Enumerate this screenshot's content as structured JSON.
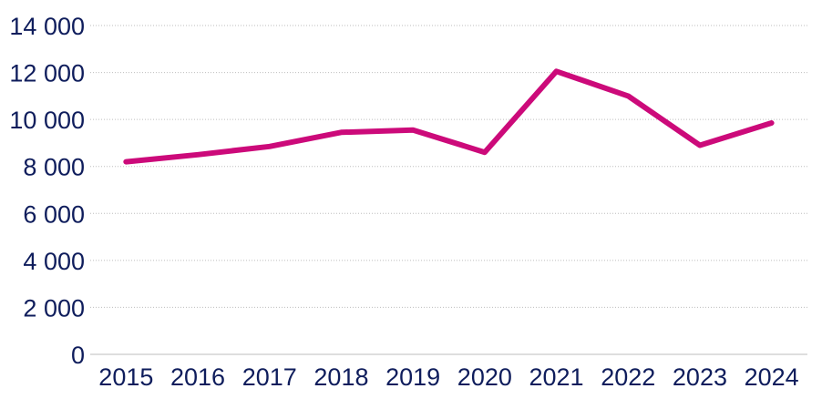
{
  "chart_data": {
    "type": "line",
    "title": "",
    "xlabel": "",
    "ylabel": "",
    "categories": [
      "2015",
      "2016",
      "2017",
      "2018",
      "2019",
      "2020",
      "2021",
      "2022",
      "2023",
      "2024"
    ],
    "series": [
      {
        "name": "",
        "color": "#cc0a7a",
        "values": [
          8200,
          8500,
          8850,
          9450,
          9550,
          8600,
          12050,
          11000,
          8900,
          9850
        ]
      }
    ],
    "ylim": [
      0,
      14000
    ],
    "yticks": [
      0,
      2000,
      4000,
      6000,
      8000,
      10000,
      12000,
      14000
    ],
    "ytick_labels": [
      "0",
      "2 000",
      "4 000",
      "6 000",
      "8 000",
      "10 000",
      "12 000",
      "14 000"
    ],
    "grid": true,
    "legend": "none"
  }
}
